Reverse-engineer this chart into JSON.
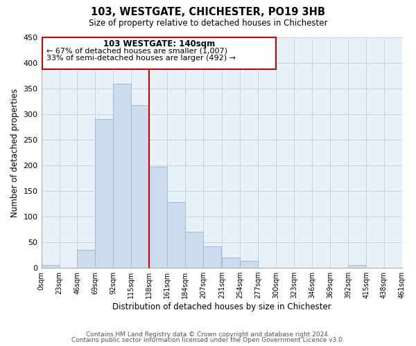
{
  "title": "103, WESTGATE, CHICHESTER, PO19 3HB",
  "subtitle": "Size of property relative to detached houses in Chichester",
  "xlabel": "Distribution of detached houses by size in Chichester",
  "ylabel": "Number of detached properties",
  "bar_color": "#ccdcee",
  "bar_edge_color": "#9ab8d4",
  "bins": [
    0,
    23,
    46,
    69,
    92,
    115,
    138,
    161,
    184,
    207,
    231,
    254,
    277,
    300,
    323,
    346,
    369,
    392,
    415,
    438,
    461
  ],
  "counts": [
    5,
    0,
    35,
    290,
    360,
    318,
    197,
    128,
    70,
    42,
    21,
    14,
    0,
    0,
    0,
    0,
    0,
    5,
    0,
    0
  ],
  "tick_labels": [
    "0sqm",
    "23sqm",
    "46sqm",
    "69sqm",
    "92sqm",
    "115sqm",
    "138sqm",
    "161sqm",
    "184sqm",
    "207sqm",
    "231sqm",
    "254sqm",
    "277sqm",
    "300sqm",
    "323sqm",
    "346sqm",
    "369sqm",
    "392sqm",
    "415sqm",
    "438sqm",
    "461sqm"
  ],
  "vline_x": 138,
  "vline_color": "#cc0000",
  "annotation_title": "103 WESTGATE: 140sqm",
  "annotation_line1": "← 67% of detached houses are smaller (1,007)",
  "annotation_line2": "33% of semi-detached houses are larger (492) →",
  "ylim": [
    0,
    450
  ],
  "yticks": [
    0,
    50,
    100,
    150,
    200,
    250,
    300,
    350,
    400,
    450
  ],
  "footer1": "Contains HM Land Registry data © Crown copyright and database right 2024.",
  "footer2": "Contains public sector information licensed under the Open Government Licence v3.0.",
  "bg_color": "#ffffff",
  "grid_color": "#c0d4e8",
  "figsize": [
    6.0,
    5.0
  ],
  "dpi": 100
}
